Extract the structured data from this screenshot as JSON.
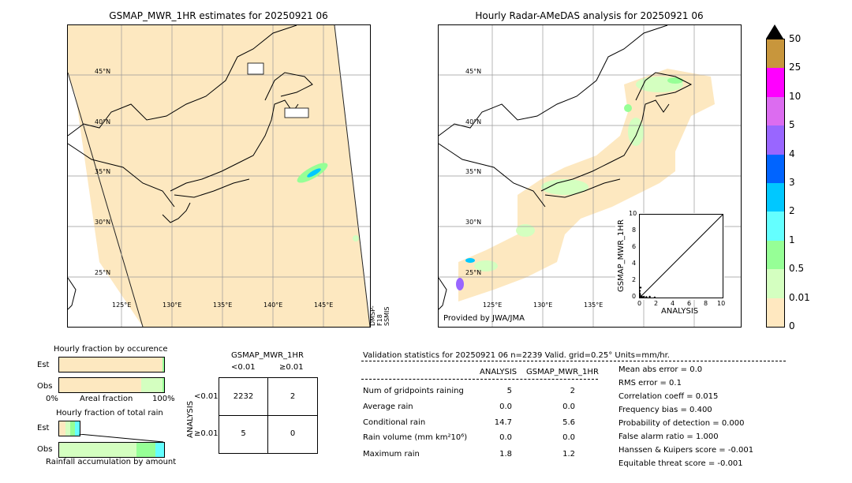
{
  "left_map": {
    "title": "GSMAP_MWR_1HR estimates for 20250921 06",
    "lat_labels": [
      "45°N",
      "40°N",
      "35°N",
      "30°N",
      "25°N"
    ],
    "lon_labels": [
      "125°E",
      "130°E",
      "135°E",
      "140°E",
      "145°E"
    ],
    "side_label": "DMSP-F18 SSMIS"
  },
  "right_map": {
    "title": "Hourly Radar-AMeDAS analysis for 20250921 06",
    "lat_labels": [
      "45°N",
      "40°N",
      "35°N",
      "30°N",
      "25°N"
    ],
    "lon_labels": [
      "125°E",
      "130°E",
      "135°E"
    ],
    "credit": "Provided by JWA/JMA"
  },
  "colorbar": {
    "labels": [
      "50",
      "25",
      "10",
      "5",
      "4",
      "3",
      "2",
      "1",
      "0.5",
      "0.01",
      "0"
    ],
    "colors": [
      "#c8963c",
      "#ff00ff",
      "#dc6cf0",
      "#9966ff",
      "#0064ff",
      "#00c8ff",
      "#64ffff",
      "#96ff96",
      "#d4ffc0",
      "#ffe8c0"
    ]
  },
  "scatter": {
    "ylabel": "GSMAP_MWR_1HR",
    "xlabel": "ANALYSIS",
    "ticks": [
      "0",
      "2",
      "4",
      "6",
      "8",
      "10"
    ],
    "y_ticks": [
      "0",
      "2",
      "4",
      "6",
      "8",
      "10"
    ]
  },
  "occurrence": {
    "title": "Hourly fraction by occurence",
    "rows": [
      "Est",
      "Obs"
    ],
    "axis": [
      "0%",
      "Areal fraction",
      "100%"
    ]
  },
  "total_rain": {
    "title": "Hourly fraction of total rain",
    "rows": [
      "Est",
      "Obs"
    ],
    "footer": "Rainfall accumulation by amount"
  },
  "contingency": {
    "col_title": "GSMAP_MWR_1HR",
    "col_headers": [
      "<0.01",
      "≥0.01"
    ],
    "row_title": "ANALYSIS",
    "row_headers": [
      "<0.01",
      "≥0.01"
    ],
    "cells": [
      [
        "2232",
        "2"
      ],
      [
        "5",
        "0"
      ]
    ]
  },
  "validation": {
    "header": "Validation statistics for 20250921 06  n=2239 Valid. grid=0.25° Units=mm/hr.",
    "col_analysis": "ANALYSIS",
    "col_gsmap": "GSMAP_MWR_1HR",
    "rows": [
      {
        "label": "Num of gridpoints raining",
        "a": "5",
        "g": "2"
      },
      {
        "label": "Average rain",
        "a": "0.0",
        "g": "0.0"
      },
      {
        "label": "Conditional rain",
        "a": "14.7",
        "g": "5.6"
      },
      {
        "label": "Rain volume (mm km²10⁶)",
        "a": "0.0",
        "g": "0.0"
      },
      {
        "label": "Maximum rain",
        "a": "1.8",
        "g": "1.2"
      }
    ],
    "scores": [
      "Mean abs error =    0.0",
      "RMS error =    0.1",
      "Correlation coeff =  0.015",
      "Frequency bias =  0.400",
      "Probability of detection =  0.000",
      "False alarm ratio =  1.000",
      "Hanssen & Kuipers score = -0.001",
      "Equitable threat score = -0.001"
    ]
  },
  "chart_data": [
    {
      "type": "scatter",
      "xlabel": "ANALYSIS",
      "ylabel": "GSMAP_MWR_1HR",
      "xlim": [
        0,
        10
      ],
      "ylim": [
        0,
        10
      ],
      "reference_line": [
        [
          0,
          0
        ],
        [
          10,
          10
        ]
      ],
      "points": [
        [
          0.0,
          0.1
        ],
        [
          0.1,
          0.0
        ],
        [
          0.2,
          0.1
        ],
        [
          0.3,
          0.05
        ],
        [
          0.5,
          0.1
        ],
        [
          0.8,
          0.05
        ],
        [
          1.2,
          0.1
        ],
        [
          1.8,
          0.0
        ],
        [
          0.05,
          0.3
        ],
        [
          0.0,
          0.5
        ],
        [
          0.1,
          1.2
        ],
        [
          0.0,
          0.8
        ]
      ]
    },
    {
      "type": "table",
      "title": "Hourly fraction by occurence",
      "rows": [
        "Est",
        "Obs"
      ],
      "est_fractions": [
        0.985,
        0.015
      ],
      "obs_fractions": [
        0.78,
        0.2,
        0.02
      ]
    },
    {
      "type": "table",
      "title": "Hourly fraction of total rain",
      "rows": [
        "Est",
        "Obs"
      ],
      "est_fractions": [
        0.05,
        0.1,
        0.1,
        0.1
      ],
      "obs_fractions": [
        0.72,
        0.16,
        0.12
      ]
    }
  ]
}
